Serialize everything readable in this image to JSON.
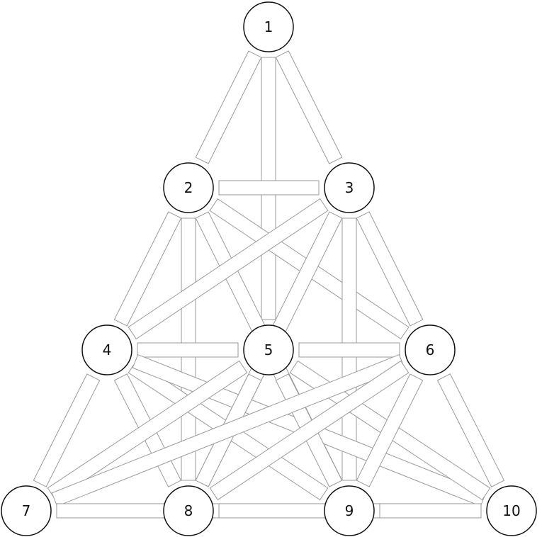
{
  "diagram": {
    "nodes": [
      {
        "id": "1",
        "label": "1"
      },
      {
        "id": "2",
        "label": "2"
      },
      {
        "id": "3",
        "label": "3"
      },
      {
        "id": "4",
        "label": "4"
      },
      {
        "id": "5",
        "label": "5"
      },
      {
        "id": "6",
        "label": "6"
      },
      {
        "id": "7",
        "label": "7"
      },
      {
        "id": "8",
        "label": "8"
      },
      {
        "id": "9",
        "label": "9"
      },
      {
        "id": "10",
        "label": "10"
      }
    ],
    "edges": [
      [
        "1",
        "2"
      ],
      [
        "1",
        "3"
      ],
      [
        "1",
        "5"
      ],
      [
        "2",
        "3"
      ],
      [
        "2",
        "4"
      ],
      [
        "2",
        "6"
      ],
      [
        "2",
        "8"
      ],
      [
        "2",
        "9"
      ],
      [
        "3",
        "4"
      ],
      [
        "3",
        "6"
      ],
      [
        "3",
        "8"
      ],
      [
        "3",
        "9"
      ],
      [
        "4",
        "5"
      ],
      [
        "4",
        "7"
      ],
      [
        "4",
        "8"
      ],
      [
        "4",
        "9"
      ],
      [
        "4",
        "10"
      ],
      [
        "5",
        "6"
      ],
      [
        "5",
        "7"
      ],
      [
        "5",
        "8"
      ],
      [
        "5",
        "9"
      ],
      [
        "5",
        "10"
      ],
      [
        "6",
        "7"
      ],
      [
        "6",
        "8"
      ],
      [
        "6",
        "9"
      ],
      [
        "6",
        "10"
      ],
      [
        "7",
        "8"
      ],
      [
        "7",
        "9"
      ],
      [
        "8",
        "9"
      ],
      [
        "8",
        "10"
      ],
      [
        "9",
        "10"
      ]
    ]
  },
  "colors": {
    "node_stroke": "#111111",
    "edge_stroke": "#9a9a9a",
    "background": "#ffffff"
  }
}
